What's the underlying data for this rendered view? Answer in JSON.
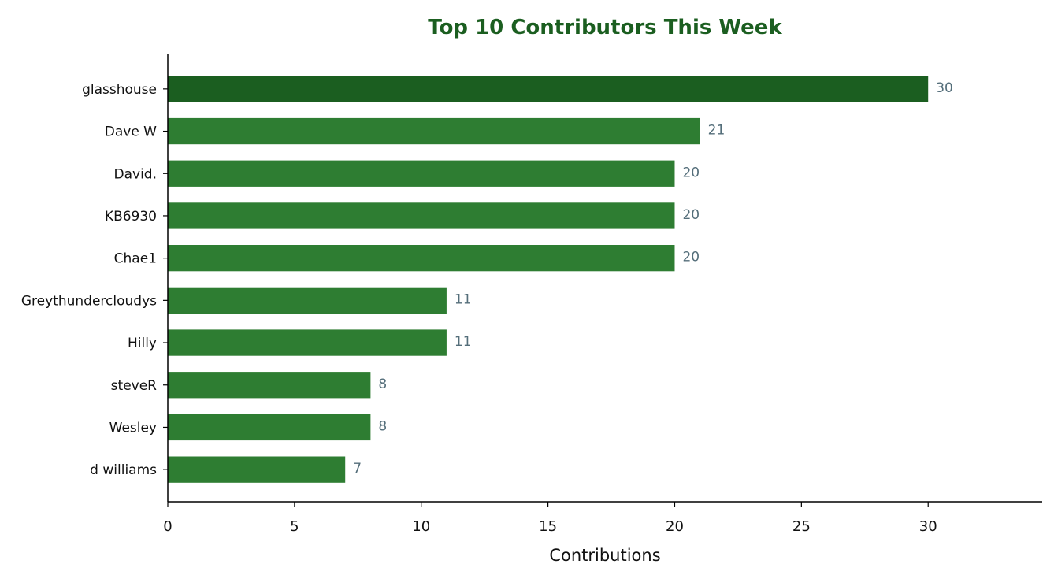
{
  "chart_data": {
    "type": "bar",
    "orientation": "horizontal",
    "title": "Top 10 Contributors This Week",
    "xlabel": "Contributions",
    "ylabel": "",
    "categories": [
      "glasshouse",
      "Dave W",
      "David.",
      "KB6930",
      "Chae1",
      "Greythundercloudys",
      "Hilly",
      "steveR",
      "Wesley",
      "d williams"
    ],
    "values": [
      30,
      21,
      20,
      20,
      20,
      11,
      11,
      8,
      8,
      7
    ],
    "xlim": [
      0,
      34.5
    ],
    "xticks": [
      0,
      5,
      10,
      15,
      20,
      25,
      30
    ],
    "grid": false,
    "data_labels": true,
    "colors": {
      "title": "#1b5e20",
      "top_bar": "#1b5e20",
      "bar": "#2e7d32",
      "data_label": "#546e7a",
      "axis": "#000000"
    }
  }
}
